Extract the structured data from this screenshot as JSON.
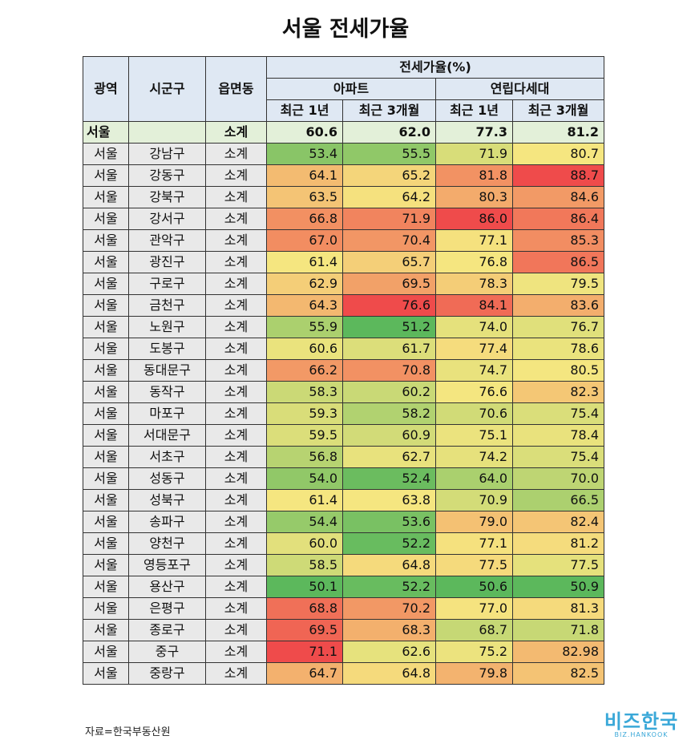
{
  "title": "서울 전세가율",
  "source": "자료=한국부동산원",
  "watermark": {
    "name": "비즈한국",
    "sub": "BIZ.HANKOOK"
  },
  "colors": {
    "low": "#5cb85c",
    "mid": "#f5e680",
    "high": "#ef4b4b",
    "header": "#dfe8f3",
    "total": "#e3f0d9"
  },
  "chart_data": {
    "type": "table",
    "title": "서울 전세가율",
    "header": {
      "region": "광역",
      "district": "시군구",
      "town": "읍면동",
      "group": "전세가율(%)",
      "apt": "아파트",
      "villa": "연립다세대",
      "recent1y": "최근 1년",
      "recent3m": "최근 3개월"
    },
    "total": {
      "region": "서울",
      "district": "",
      "town": "소계",
      "values": [
        "60.6",
        "62.0",
        "77.3",
        "81.2"
      ]
    },
    "rows": [
      {
        "region": "서울",
        "district": "강남구",
        "town": "소계",
        "values": [
          "53.4",
          "55.5",
          "71.9",
          "80.7"
        ]
      },
      {
        "region": "서울",
        "district": "강동구",
        "town": "소계",
        "values": [
          "64.1",
          "65.2",
          "81.8",
          "88.7"
        ]
      },
      {
        "region": "서울",
        "district": "강북구",
        "town": "소계",
        "values": [
          "63.5",
          "64.2",
          "80.3",
          "84.6"
        ]
      },
      {
        "region": "서울",
        "district": "강서구",
        "town": "소계",
        "values": [
          "66.8",
          "71.9",
          "86.0",
          "86.4"
        ]
      },
      {
        "region": "서울",
        "district": "관악구",
        "town": "소계",
        "values": [
          "67.0",
          "70.4",
          "77.1",
          "85.3"
        ]
      },
      {
        "region": "서울",
        "district": "광진구",
        "town": "소계",
        "values": [
          "61.4",
          "65.7",
          "76.8",
          "86.5"
        ]
      },
      {
        "region": "서울",
        "district": "구로구",
        "town": "소계",
        "values": [
          "62.9",
          "69.5",
          "78.3",
          "79.5"
        ]
      },
      {
        "region": "서울",
        "district": "금천구",
        "town": "소계",
        "values": [
          "64.3",
          "76.6",
          "84.1",
          "83.6"
        ]
      },
      {
        "region": "서울",
        "district": "노원구",
        "town": "소계",
        "values": [
          "55.9",
          "51.2",
          "74.0",
          "76.7"
        ]
      },
      {
        "region": "서울",
        "district": "도봉구",
        "town": "소계",
        "values": [
          "60.6",
          "61.7",
          "77.4",
          "78.6"
        ]
      },
      {
        "region": "서울",
        "district": "동대문구",
        "town": "소계",
        "values": [
          "66.2",
          "70.8",
          "74.7",
          "80.5"
        ]
      },
      {
        "region": "서울",
        "district": "동작구",
        "town": "소계",
        "values": [
          "58.3",
          "60.2",
          "76.6",
          "82.3"
        ]
      },
      {
        "region": "서울",
        "district": "마포구",
        "town": "소계",
        "values": [
          "59.3",
          "58.2",
          "70.6",
          "75.4"
        ]
      },
      {
        "region": "서울",
        "district": "서대문구",
        "town": "소계",
        "values": [
          "59.5",
          "60.9",
          "75.1",
          "78.4"
        ]
      },
      {
        "region": "서울",
        "district": "서초구",
        "town": "소계",
        "values": [
          "56.8",
          "62.7",
          "74.2",
          "75.4"
        ]
      },
      {
        "region": "서울",
        "district": "성동구",
        "town": "소계",
        "values": [
          "54.0",
          "52.4",
          "64.0",
          "70.0"
        ]
      },
      {
        "region": "서울",
        "district": "성북구",
        "town": "소계",
        "values": [
          "61.4",
          "63.8",
          "70.9",
          "66.5"
        ]
      },
      {
        "region": "서울",
        "district": "송파구",
        "town": "소계",
        "values": [
          "54.4",
          "53.6",
          "79.0",
          "82.4"
        ]
      },
      {
        "region": "서울",
        "district": "양천구",
        "town": "소계",
        "values": [
          "60.0",
          "52.2",
          "77.1",
          "81.2"
        ]
      },
      {
        "region": "서울",
        "district": "영등포구",
        "town": "소계",
        "values": [
          "58.5",
          "64.8",
          "77.5",
          "77.5"
        ]
      },
      {
        "region": "서울",
        "district": "용산구",
        "town": "소계",
        "values": [
          "50.1",
          "52.2",
          "50.6",
          "50.9"
        ]
      },
      {
        "region": "서울",
        "district": "은평구",
        "town": "소계",
        "values": [
          "68.8",
          "70.2",
          "77.0",
          "81.3"
        ]
      },
      {
        "region": "서울",
        "district": "종로구",
        "town": "소계",
        "values": [
          "69.5",
          "68.3",
          "68.7",
          "71.8"
        ]
      },
      {
        "region": "서울",
        "district": "중구",
        "town": "소계",
        "values": [
          "71.1",
          "62.6",
          "75.2",
          "82.98"
        ]
      },
      {
        "region": "서울",
        "district": "중랑구",
        "town": "소계",
        "values": [
          "64.7",
          "64.8",
          "79.8",
          "82.5"
        ]
      }
    ]
  }
}
